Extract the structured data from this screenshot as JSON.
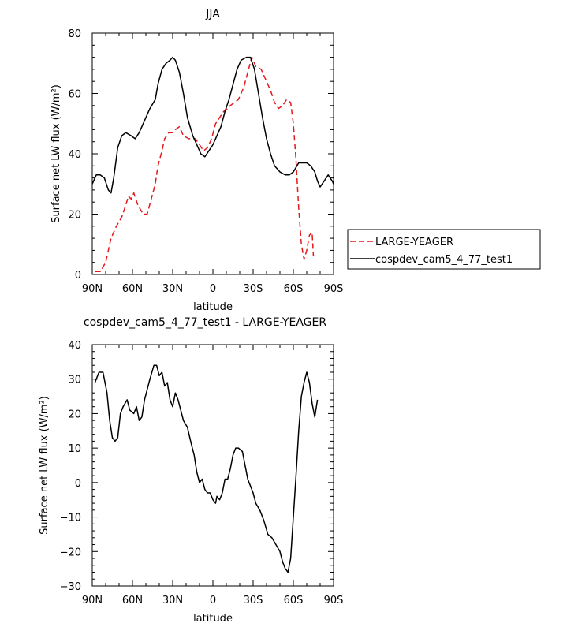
{
  "chart_data": [
    {
      "type": "line",
      "title": "JJA",
      "xlabel": "latitude",
      "ylabel": "Surface net LW flux (W/m²)",
      "xlim": [
        90,
        -90
      ],
      "ylim": [
        0,
        80
      ],
      "x_ticks": [
        90,
        60,
        30,
        0,
        -30,
        -60,
        -90
      ],
      "x_tick_labels": [
        "90N",
        "60N",
        "30N",
        "0",
        "30S",
        "60S",
        "90S"
      ],
      "y_ticks": [
        0,
        20,
        40,
        60,
        80
      ],
      "y_tick_labels": [
        "0",
        "20",
        "40",
        "60",
        "80"
      ],
      "legend": "right",
      "series": [
        {
          "name": "LARGE-YEAGER",
          "color": "#e31a1c",
          "dash": "dashed",
          "points": [
            [
              88,
              1
            ],
            [
              84,
              1
            ],
            [
              80,
              4
            ],
            [
              76,
              12
            ],
            [
              72,
              16
            ],
            [
              68,
              19
            ],
            [
              65,
              23
            ],
            [
              63,
              26
            ],
            [
              61,
              25
            ],
            [
              59,
              27
            ],
            [
              56,
              23
            ],
            [
              52,
              20
            ],
            [
              49,
              20
            ],
            [
              46,
              25
            ],
            [
              43,
              30
            ],
            [
              41,
              36
            ],
            [
              38,
              41
            ],
            [
              36,
              45
            ],
            [
              33,
              47
            ],
            [
              30,
              47
            ],
            [
              28,
              48
            ],
            [
              25,
              49
            ],
            [
              22,
              46
            ],
            [
              18,
              45
            ],
            [
              13,
              45
            ],
            [
              10,
              43
            ],
            [
              7,
              41
            ],
            [
              4,
              42
            ],
            [
              1,
              45
            ],
            [
              -2,
              50
            ],
            [
              -5,
              52
            ],
            [
              -8,
              54
            ],
            [
              -11,
              55
            ],
            [
              -13,
              56
            ],
            [
              -16,
              57
            ],
            [
              -19,
              58
            ],
            [
              -23,
              62
            ],
            [
              -26,
              67
            ],
            [
              -29,
              72
            ],
            [
              -32,
              69
            ],
            [
              -36,
              68
            ],
            [
              -40,
              64
            ],
            [
              -43,
              61
            ],
            [
              -46,
              57
            ],
            [
              -49,
              55
            ],
            [
              -52,
              56
            ],
            [
              -55,
              58
            ],
            [
              -58,
              57
            ],
            [
              -60,
              50
            ],
            [
              -62,
              38
            ],
            [
              -64,
              22
            ],
            [
              -66,
              10
            ],
            [
              -68,
              5
            ],
            [
              -70,
              8
            ],
            [
              -72,
              13
            ],
            [
              -74,
              14
            ],
            [
              -75,
              6
            ]
          ]
        },
        {
          "name": "cospdev_cam5_4_77_test1",
          "color": "#000000",
          "dash": "solid",
          "points": [
            [
              90,
              30
            ],
            [
              87,
              33
            ],
            [
              84,
              33
            ],
            [
              81,
              32
            ],
            [
              78,
              28
            ],
            [
              76,
              27
            ],
            [
              74,
              32
            ],
            [
              71,
              42
            ],
            [
              68,
              46
            ],
            [
              65,
              47
            ],
            [
              61,
              46
            ],
            [
              58,
              45
            ],
            [
              55,
              47
            ],
            [
              51,
              51
            ],
            [
              47,
              55
            ],
            [
              43,
              58
            ],
            [
              41,
              63
            ],
            [
              38,
              68
            ],
            [
              35,
              70
            ],
            [
              32,
              71
            ],
            [
              30,
              72
            ],
            [
              28,
              71
            ],
            [
              25,
              67
            ],
            [
              22,
              60
            ],
            [
              19,
              52
            ],
            [
              15,
              46
            ],
            [
              12,
              43
            ],
            [
              9,
              40
            ],
            [
              6,
              39
            ],
            [
              3,
              41
            ],
            [
              0,
              43
            ],
            [
              -3,
              46
            ],
            [
              -6,
              49
            ],
            [
              -9,
              54
            ],
            [
              -12,
              58
            ],
            [
              -15,
              63
            ],
            [
              -18,
              68
            ],
            [
              -21,
              71
            ],
            [
              -25,
              72
            ],
            [
              -28,
              72
            ],
            [
              -31,
              68
            ],
            [
              -34,
              60
            ],
            [
              -37,
              52
            ],
            [
              -40,
              45
            ],
            [
              -43,
              40
            ],
            [
              -46,
              36
            ],
            [
              -50,
              34
            ],
            [
              -54,
              33
            ],
            [
              -57,
              33
            ],
            [
              -60,
              34
            ],
            [
              -64,
              37
            ],
            [
              -68,
              37
            ],
            [
              -70,
              37
            ],
            [
              -73,
              36
            ],
            [
              -76,
              34
            ],
            [
              -78,
              31
            ],
            [
              -80,
              29
            ],
            [
              -83,
              31
            ],
            [
              -86,
              33
            ],
            [
              -89,
              31
            ],
            [
              -91,
              29
            ]
          ]
        }
      ]
    },
    {
      "type": "line",
      "title": "cospdev_cam5_4_77_test1 - LARGE-YEAGER",
      "xlabel": "latitude",
      "ylabel": "Surface net LW flux (W/m²)",
      "xlim": [
        90,
        -90
      ],
      "ylim": [
        -30,
        40
      ],
      "x_ticks": [
        90,
        60,
        30,
        0,
        -30,
        -60,
        -90
      ],
      "x_tick_labels": [
        "90N",
        "60N",
        "30N",
        "0",
        "30S",
        "60S",
        "90S"
      ],
      "y_ticks": [
        -30,
        -20,
        -10,
        0,
        10,
        20,
        30,
        40
      ],
      "y_tick_labels": [
        "−30",
        "−20",
        "−10",
        "0",
        "10",
        "20",
        "30",
        "40"
      ],
      "series": [
        {
          "name": "",
          "color": "#000000",
          "dash": "solid",
          "points": [
            [
              88,
              29
            ],
            [
              85,
              32
            ],
            [
              82,
              32
            ],
            [
              79,
              26
            ],
            [
              77,
              18
            ],
            [
              75,
              13
            ],
            [
              73,
              12
            ],
            [
              71,
              13
            ],
            [
              69,
              20
            ],
            [
              67,
              22
            ],
            [
              64,
              24
            ],
            [
              62,
              21
            ],
            [
              59,
              20
            ],
            [
              57,
              22
            ],
            [
              55,
              18
            ],
            [
              53,
              19
            ],
            [
              51,
              24
            ],
            [
              49,
              27
            ],
            [
              47,
              30
            ],
            [
              44,
              34
            ],
            [
              42,
              34
            ],
            [
              40,
              31
            ],
            [
              38,
              32
            ],
            [
              36,
              28
            ],
            [
              34,
              29
            ],
            [
              32,
              24
            ],
            [
              30,
              22
            ],
            [
              28,
              26
            ],
            [
              26,
              24
            ],
            [
              24,
              21
            ],
            [
              22,
              18
            ],
            [
              19,
              16
            ],
            [
              16,
              11
            ],
            [
              14,
              8
            ],
            [
              12,
              3
            ],
            [
              10,
              0
            ],
            [
              8,
              1
            ],
            [
              6,
              -2
            ],
            [
              4,
              -3
            ],
            [
              2,
              -3
            ],
            [
              0,
              -5
            ],
            [
              -2,
              -6
            ],
            [
              -3,
              -4
            ],
            [
              -5,
              -5
            ],
            [
              -7,
              -3
            ],
            [
              -9,
              1
            ],
            [
              -11,
              1
            ],
            [
              -13,
              4
            ],
            [
              -15,
              8
            ],
            [
              -17,
              10
            ],
            [
              -19,
              10
            ],
            [
              -22,
              9
            ],
            [
              -24,
              5
            ],
            [
              -26,
              1
            ],
            [
              -28,
              -1
            ],
            [
              -30,
              -3
            ],
            [
              -32,
              -6
            ],
            [
              -35,
              -8
            ],
            [
              -38,
              -11
            ],
            [
              -41,
              -15
            ],
            [
              -44,
              -16
            ],
            [
              -47,
              -18
            ],
            [
              -50,
              -20
            ],
            [
              -52,
              -23
            ],
            [
              -54,
              -25
            ],
            [
              -56,
              -26
            ],
            [
              -58,
              -22
            ],
            [
              -60,
              -10
            ],
            [
              -62,
              2
            ],
            [
              -64,
              15
            ],
            [
              -66,
              25
            ],
            [
              -68,
              29
            ],
            [
              -70,
              32
            ],
            [
              -72,
              29
            ],
            [
              -74,
              23
            ],
            [
              -76,
              19
            ],
            [
              -78,
              24
            ]
          ]
        }
      ]
    }
  ]
}
